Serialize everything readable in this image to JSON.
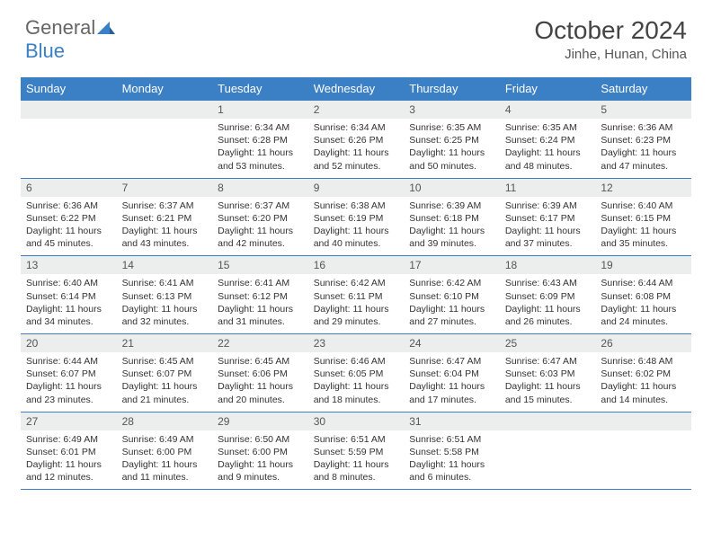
{
  "brand": {
    "text1": "General",
    "text2": "Blue"
  },
  "title": "October 2024",
  "location": "Jinhe, Hunan, China",
  "colors": {
    "header_bg": "#3b7fc4",
    "header_fg": "#ffffff",
    "daynum_bg": "#eceded",
    "border": "#3b7fc4",
    "text": "#333333",
    "brand_gray": "#666666",
    "brand_blue": "#3b7fc4"
  },
  "day_headers": [
    "Sunday",
    "Monday",
    "Tuesday",
    "Wednesday",
    "Thursday",
    "Friday",
    "Saturday"
  ],
  "weeks": [
    [
      {
        "n": "",
        "lines": []
      },
      {
        "n": "",
        "lines": []
      },
      {
        "n": "1",
        "lines": [
          "Sunrise: 6:34 AM",
          "Sunset: 6:28 PM",
          "Daylight: 11 hours",
          "and 53 minutes."
        ]
      },
      {
        "n": "2",
        "lines": [
          "Sunrise: 6:34 AM",
          "Sunset: 6:26 PM",
          "Daylight: 11 hours",
          "and 52 minutes."
        ]
      },
      {
        "n": "3",
        "lines": [
          "Sunrise: 6:35 AM",
          "Sunset: 6:25 PM",
          "Daylight: 11 hours",
          "and 50 minutes."
        ]
      },
      {
        "n": "4",
        "lines": [
          "Sunrise: 6:35 AM",
          "Sunset: 6:24 PM",
          "Daylight: 11 hours",
          "and 48 minutes."
        ]
      },
      {
        "n": "5",
        "lines": [
          "Sunrise: 6:36 AM",
          "Sunset: 6:23 PM",
          "Daylight: 11 hours",
          "and 47 minutes."
        ]
      }
    ],
    [
      {
        "n": "6",
        "lines": [
          "Sunrise: 6:36 AM",
          "Sunset: 6:22 PM",
          "Daylight: 11 hours",
          "and 45 minutes."
        ]
      },
      {
        "n": "7",
        "lines": [
          "Sunrise: 6:37 AM",
          "Sunset: 6:21 PM",
          "Daylight: 11 hours",
          "and 43 minutes."
        ]
      },
      {
        "n": "8",
        "lines": [
          "Sunrise: 6:37 AM",
          "Sunset: 6:20 PM",
          "Daylight: 11 hours",
          "and 42 minutes."
        ]
      },
      {
        "n": "9",
        "lines": [
          "Sunrise: 6:38 AM",
          "Sunset: 6:19 PM",
          "Daylight: 11 hours",
          "and 40 minutes."
        ]
      },
      {
        "n": "10",
        "lines": [
          "Sunrise: 6:39 AM",
          "Sunset: 6:18 PM",
          "Daylight: 11 hours",
          "and 39 minutes."
        ]
      },
      {
        "n": "11",
        "lines": [
          "Sunrise: 6:39 AM",
          "Sunset: 6:17 PM",
          "Daylight: 11 hours",
          "and 37 minutes."
        ]
      },
      {
        "n": "12",
        "lines": [
          "Sunrise: 6:40 AM",
          "Sunset: 6:15 PM",
          "Daylight: 11 hours",
          "and 35 minutes."
        ]
      }
    ],
    [
      {
        "n": "13",
        "lines": [
          "Sunrise: 6:40 AM",
          "Sunset: 6:14 PM",
          "Daylight: 11 hours",
          "and 34 minutes."
        ]
      },
      {
        "n": "14",
        "lines": [
          "Sunrise: 6:41 AM",
          "Sunset: 6:13 PM",
          "Daylight: 11 hours",
          "and 32 minutes."
        ]
      },
      {
        "n": "15",
        "lines": [
          "Sunrise: 6:41 AM",
          "Sunset: 6:12 PM",
          "Daylight: 11 hours",
          "and 31 minutes."
        ]
      },
      {
        "n": "16",
        "lines": [
          "Sunrise: 6:42 AM",
          "Sunset: 6:11 PM",
          "Daylight: 11 hours",
          "and 29 minutes."
        ]
      },
      {
        "n": "17",
        "lines": [
          "Sunrise: 6:42 AM",
          "Sunset: 6:10 PM",
          "Daylight: 11 hours",
          "and 27 minutes."
        ]
      },
      {
        "n": "18",
        "lines": [
          "Sunrise: 6:43 AM",
          "Sunset: 6:09 PM",
          "Daylight: 11 hours",
          "and 26 minutes."
        ]
      },
      {
        "n": "19",
        "lines": [
          "Sunrise: 6:44 AM",
          "Sunset: 6:08 PM",
          "Daylight: 11 hours",
          "and 24 minutes."
        ]
      }
    ],
    [
      {
        "n": "20",
        "lines": [
          "Sunrise: 6:44 AM",
          "Sunset: 6:07 PM",
          "Daylight: 11 hours",
          "and 23 minutes."
        ]
      },
      {
        "n": "21",
        "lines": [
          "Sunrise: 6:45 AM",
          "Sunset: 6:07 PM",
          "Daylight: 11 hours",
          "and 21 minutes."
        ]
      },
      {
        "n": "22",
        "lines": [
          "Sunrise: 6:45 AM",
          "Sunset: 6:06 PM",
          "Daylight: 11 hours",
          "and 20 minutes."
        ]
      },
      {
        "n": "23",
        "lines": [
          "Sunrise: 6:46 AM",
          "Sunset: 6:05 PM",
          "Daylight: 11 hours",
          "and 18 minutes."
        ]
      },
      {
        "n": "24",
        "lines": [
          "Sunrise: 6:47 AM",
          "Sunset: 6:04 PM",
          "Daylight: 11 hours",
          "and 17 minutes."
        ]
      },
      {
        "n": "25",
        "lines": [
          "Sunrise: 6:47 AM",
          "Sunset: 6:03 PM",
          "Daylight: 11 hours",
          "and 15 minutes."
        ]
      },
      {
        "n": "26",
        "lines": [
          "Sunrise: 6:48 AM",
          "Sunset: 6:02 PM",
          "Daylight: 11 hours",
          "and 14 minutes."
        ]
      }
    ],
    [
      {
        "n": "27",
        "lines": [
          "Sunrise: 6:49 AM",
          "Sunset: 6:01 PM",
          "Daylight: 11 hours",
          "and 12 minutes."
        ]
      },
      {
        "n": "28",
        "lines": [
          "Sunrise: 6:49 AM",
          "Sunset: 6:00 PM",
          "Daylight: 11 hours",
          "and 11 minutes."
        ]
      },
      {
        "n": "29",
        "lines": [
          "Sunrise: 6:50 AM",
          "Sunset: 6:00 PM",
          "Daylight: 11 hours",
          "and 9 minutes."
        ]
      },
      {
        "n": "30",
        "lines": [
          "Sunrise: 6:51 AM",
          "Sunset: 5:59 PM",
          "Daylight: 11 hours",
          "and 8 minutes."
        ]
      },
      {
        "n": "31",
        "lines": [
          "Sunrise: 6:51 AM",
          "Sunset: 5:58 PM",
          "Daylight: 11 hours",
          "and 6 minutes."
        ]
      },
      {
        "n": "",
        "lines": []
      },
      {
        "n": "",
        "lines": []
      }
    ]
  ]
}
